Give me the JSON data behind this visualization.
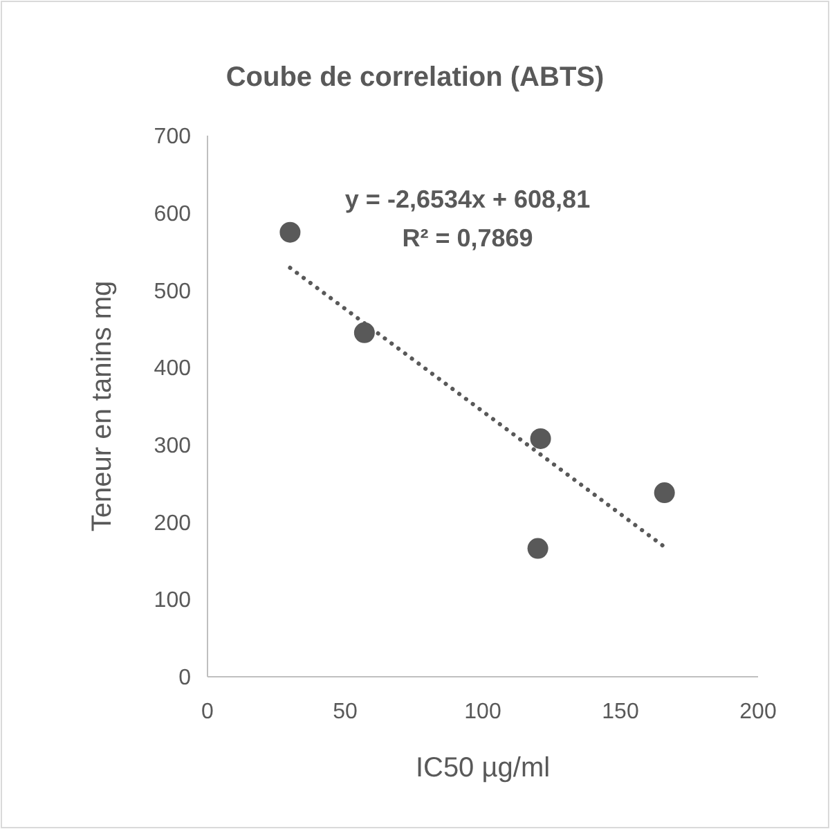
{
  "chart_data": {
    "type": "scatter",
    "title": "Coube de correlation (ABTS)",
    "xlabel": "IC50 µg/ml",
    "ylabel": "Teneur en tanins mg",
    "xlim": [
      0,
      200
    ],
    "xticks": [
      0,
      50,
      100,
      150,
      200
    ],
    "ylim": [
      0,
      700
    ],
    "yticks": [
      0,
      100,
      200,
      300,
      400,
      500,
      600,
      700
    ],
    "grid": false,
    "series": [
      {
        "color": "#595959",
        "marker": "circle",
        "x": [
          30,
          57,
          121,
          120,
          166
        ],
        "values": [
          575,
          445,
          308,
          166,
          238
        ]
      },
      {
        "type": "line",
        "color": "#595959",
        "marker": "none",
        "line_style": "dotted",
        "x": [
          30,
          166
        ],
        "values": [
          529,
          168
        ]
      }
    ],
    "annotations": [
      "y = -2,6534x + 608,81",
      "R² = 0,7869"
    ]
  }
}
